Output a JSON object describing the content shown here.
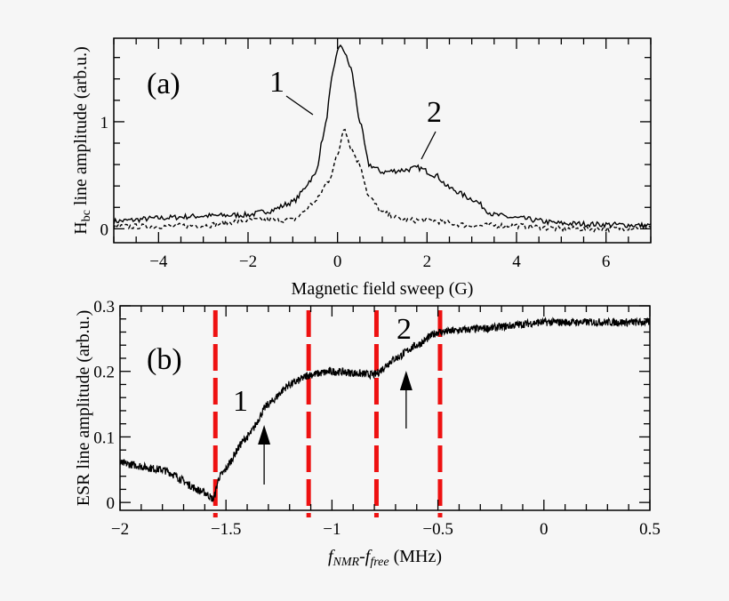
{
  "chart_data": [
    {
      "type": "line",
      "panel_label": "(a)",
      "xlabel": "Magnetic field sweep (G)",
      "ylabel_parts": [
        "H",
        "bc",
        " line amplitude (arb.u.)"
      ],
      "xlim": [
        -5,
        7
      ],
      "ylim": [
        -0.13,
        1.78
      ],
      "xticks": [
        -4,
        -2,
        0,
        2,
        4,
        6
      ],
      "xtick_labels": [
        "−4",
        "−2",
        "0",
        "2",
        "4",
        "6"
      ],
      "yticks": [
        0,
        1
      ],
      "ytick_labels": [
        "0",
        "1"
      ],
      "grid": false,
      "annotations": [
        "1",
        "2"
      ],
      "series": [
        {
          "style": "solid",
          "color": "#000000",
          "x": [
            -5,
            -4,
            -3,
            -2,
            -1.5,
            -1,
            -0.5,
            -0.3,
            -0.1,
            0,
            0.1,
            0.3,
            0.5,
            0.7,
            1,
            1.5,
            1.8,
            2.2,
            2.5,
            3,
            3.5,
            4,
            5,
            6,
            7
          ],
          "y": [
            0.07,
            0.1,
            0.12,
            0.13,
            0.17,
            0.25,
            0.5,
            0.9,
            1.45,
            1.68,
            1.7,
            1.5,
            1.0,
            0.6,
            0.53,
            0.55,
            0.57,
            0.5,
            0.38,
            0.28,
            0.13,
            0.1,
            0.05,
            0.04,
            0.03
          ]
        },
        {
          "style": "dashed",
          "color": "#000000",
          "x": [
            -5,
            -3,
            -2,
            -1,
            -0.5,
            -0.2,
            0,
            0.15,
            0.3,
            0.5,
            0.7,
            1,
            1.5,
            2,
            3,
            4,
            5,
            6,
            7
          ],
          "y": [
            0.02,
            0.03,
            0.08,
            0.08,
            0.25,
            0.45,
            0.68,
            0.96,
            0.75,
            0.6,
            0.3,
            0.15,
            0.08,
            0.08,
            0.03,
            0.03,
            0.0,
            0.0,
            0.02
          ]
        }
      ]
    },
    {
      "type": "line",
      "panel_label": "(b)",
      "xlabel_parts": [
        "f",
        "NMR",
        "-f",
        "free",
        " (MHz)"
      ],
      "ylabel": "ESR line amplitude (arb.u.)",
      "xlim": [
        -2,
        0.5
      ],
      "ylim": [
        -0.012,
        0.3
      ],
      "xticks": [
        -2,
        -1.5,
        -1,
        -0.5,
        0,
        0.5
      ],
      "xtick_labels": [
        "−2",
        "−1.5",
        "−1",
        "−0.5",
        "0",
        "0.5"
      ],
      "yticks": [
        0,
        0.1,
        0.2,
        0.3
      ],
      "ytick_labels": [
        "0",
        "0.1",
        "0.2",
        "0.3"
      ],
      "grid": false,
      "annotations": [
        "1",
        "2"
      ],
      "arrows_at": [
        -1.32,
        -0.65
      ],
      "vlines": {
        "x": [
          -1.55,
          -1.11,
          -0.79,
          -0.49
        ],
        "color": "#ee1111",
        "style": "dashed"
      },
      "series": [
        {
          "style": "solid",
          "color": "#000000",
          "x": [
            -2,
            -1.8,
            -1.6,
            -1.56,
            -1.53,
            -1.4,
            -1.3,
            -1.2,
            -1.1,
            -1,
            -0.8,
            -0.7,
            -0.6,
            -0.5,
            -0.3,
            0,
            0.5
          ],
          "y": [
            0.06,
            0.05,
            0.015,
            0.005,
            0.04,
            0.1,
            0.15,
            0.18,
            0.195,
            0.2,
            0.195,
            0.22,
            0.24,
            0.26,
            0.265,
            0.275,
            0.275
          ]
        }
      ]
    }
  ]
}
